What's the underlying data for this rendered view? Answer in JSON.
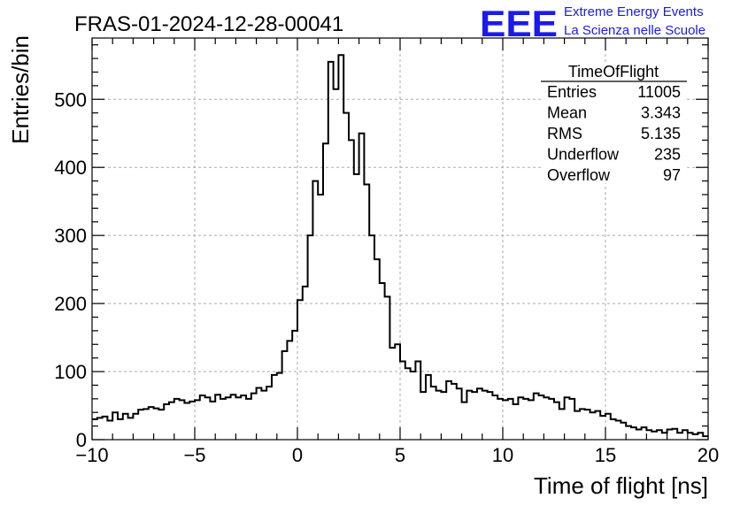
{
  "run_title": "FRAS-01-2024-12-28-00041",
  "logo": {
    "text": "EEE",
    "line1": "Extreme Energy Events",
    "line2": "La Scienza nelle Scuole",
    "color": "#1a1aee"
  },
  "stats": {
    "title": "TimeOfFlight",
    "rows": [
      {
        "label": "Entries",
        "value": "11005"
      },
      {
        "label": "Mean",
        "value": "3.343"
      },
      {
        "label": "RMS",
        "value": "5.135"
      },
      {
        "label": "Underflow",
        "value": "235"
      },
      {
        "label": "Overflow",
        "value": "97"
      }
    ]
  },
  "chart_data": {
    "type": "histogram",
    "title": "FRAS-01-2024-12-28-00041",
    "xlabel": "Time of flight [ns]",
    "ylabel": "Entries/bin",
    "xlim": [
      -10,
      20
    ],
    "ylim": [
      0,
      590
    ],
    "xticks": [
      -10,
      -5,
      0,
      5,
      10,
      15,
      20
    ],
    "yticks": [
      0,
      100,
      200,
      300,
      400,
      500
    ],
    "grid": true,
    "bin_width": 0.25,
    "x_start": -10,
    "values": [
      30,
      32,
      34,
      28,
      40,
      30,
      38,
      32,
      38,
      44,
      45,
      48,
      46,
      44,
      52,
      55,
      60,
      58,
      54,
      56,
      58,
      65,
      62,
      56,
      66,
      60,
      62,
      66,
      62,
      65,
      60,
      68,
      76,
      72,
      78,
      95,
      98,
      130,
      145,
      160,
      205,
      225,
      300,
      380,
      360,
      435,
      555,
      515,
      565,
      480,
      440,
      390,
      450,
      375,
      300,
      265,
      230,
      210,
      135,
      140,
      115,
      105,
      100,
      115,
      70,
      95,
      78,
      72,
      70,
      86,
      82,
      75,
      55,
      72,
      70,
      75,
      72,
      70,
      65,
      60,
      58,
      60,
      52,
      62,
      60,
      58,
      68,
      65,
      62,
      60,
      55,
      45,
      62,
      60,
      42,
      45,
      44,
      40,
      42,
      35,
      38,
      30,
      28,
      25,
      20,
      18,
      15,
      18,
      14,
      12,
      14,
      10,
      15,
      16,
      10,
      14,
      10,
      8,
      10,
      5
    ]
  }
}
